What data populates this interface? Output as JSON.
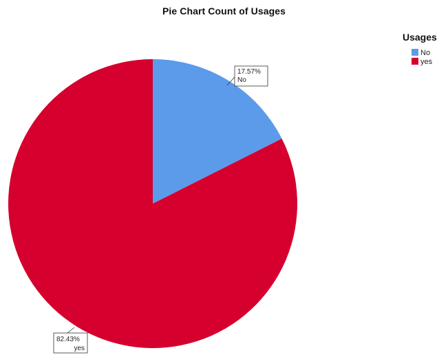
{
  "chart_data": {
    "type": "pie",
    "title": "Pie Chart Count of Usages",
    "legend": {
      "title": "Usages",
      "placement": "top-right"
    },
    "slices": [
      {
        "name": "No",
        "percent_label": "17.57%",
        "value": 17.57,
        "color": "#5b9bea"
      },
      {
        "name": "yes",
        "percent_label": "82.43%",
        "value": 82.43,
        "color": "#d6002e"
      }
    ]
  }
}
